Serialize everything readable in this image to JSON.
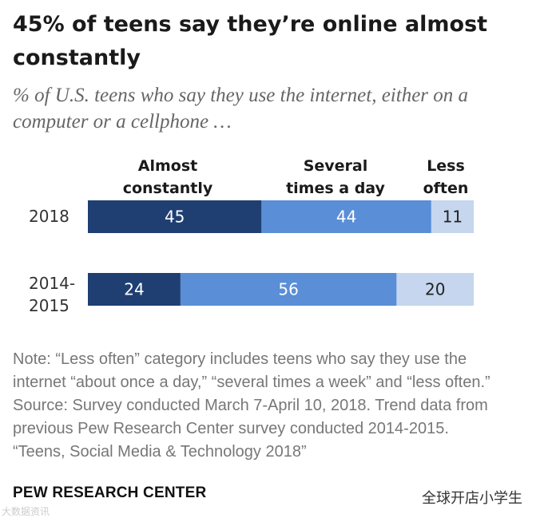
{
  "title": "45% of teens say they’re online almost constantly",
  "subtitle": "% of U.S. teens who say they use the internet, either on a computer or a cellphone …",
  "colors": {
    "almost_constantly": "#1f3f73",
    "several_times": "#5a8ed6",
    "less_often": "#c5d6ee",
    "label_dark_bg": "#ffffff",
    "label_light_bg": "#222222"
  },
  "chart_data": {
    "type": "bar",
    "orientation": "horizontal",
    "stacked": true,
    "categories": [
      "2018",
      "2014-\n2015"
    ],
    "series": [
      {
        "name": "Almost\nconstantly",
        "values": [
          45,
          24
        ]
      },
      {
        "name": "Several\ntimes a day",
        "values": [
          44,
          56
        ]
      },
      {
        "name": "Less\noften",
        "values": [
          11,
          20
        ]
      }
    ],
    "xlim": [
      0,
      100
    ],
    "grid": false,
    "legend": "top"
  },
  "notes": {
    "note": "Note: “Less often” category includes teens who say they use the internet “about once a day,” “several times a week” and “less often.”",
    "source": "Source: Survey conducted March 7-April 10, 2018. Trend data from previous Pew Research Center survey conducted 2014-2015.",
    "report": "“Teens, Social Media & Technology 2018”"
  },
  "brand": "PEW RESEARCH CENTER",
  "watermarks": {
    "right": "全球开店小学生",
    "left": "大数据资讯"
  }
}
